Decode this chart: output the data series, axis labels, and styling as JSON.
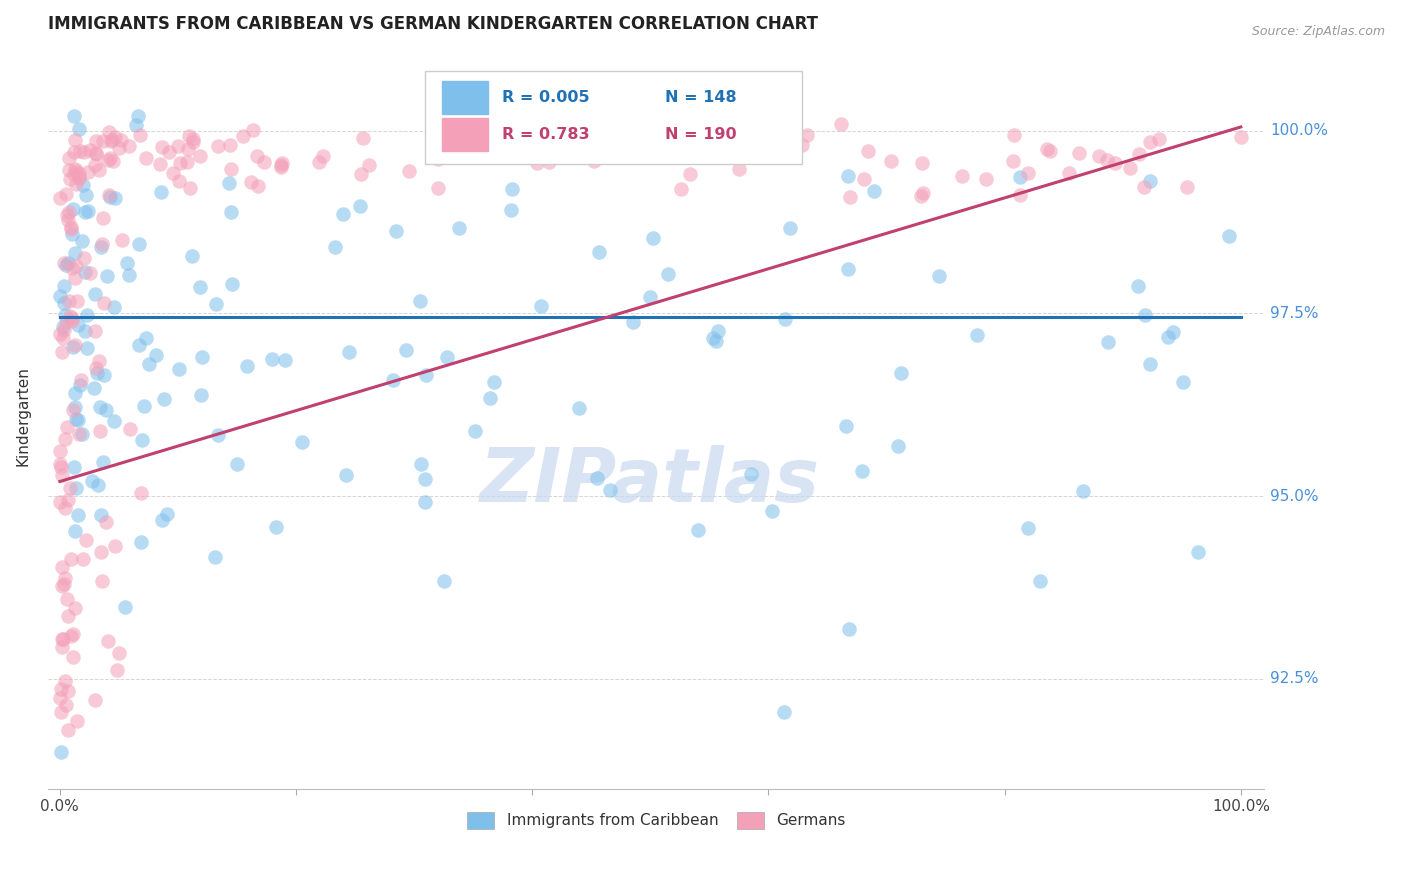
{
  "title": "IMMIGRANTS FROM CARIBBEAN VS GERMAN KINDERGARTEN CORRELATION CHART",
  "source": "Source: ZipAtlas.com",
  "ylabel": "Kindergarten",
  "ylim": [
    91.0,
    101.2
  ],
  "xlim": [
    -1.0,
    102.0
  ],
  "yticks": [
    92.5,
    95.0,
    97.5,
    100.0
  ],
  "ytick_labels": [
    "92.5%",
    "95.0%",
    "97.5%",
    "100.0%"
  ],
  "blue_color": "#7fbfeb",
  "pink_color": "#f4a0b8",
  "blue_line_color": "#2171b5",
  "pink_line_color": "#c04070",
  "legend_r_blue": "R = 0.005",
  "legend_n_blue": "N = 148",
  "legend_r_pink": "R = 0.783",
  "legend_n_pink": "N = 190",
  "blue_regression_y": 97.45,
  "pink_regression": [
    0.0,
    95.2,
    100.0,
    100.05
  ],
  "watermark": "ZIPatlas",
  "background_color": "#ffffff",
  "grid_color": "#cccccc",
  "right_label_color": "#4a90d9",
  "watermark_color": "#c8d8ee"
}
